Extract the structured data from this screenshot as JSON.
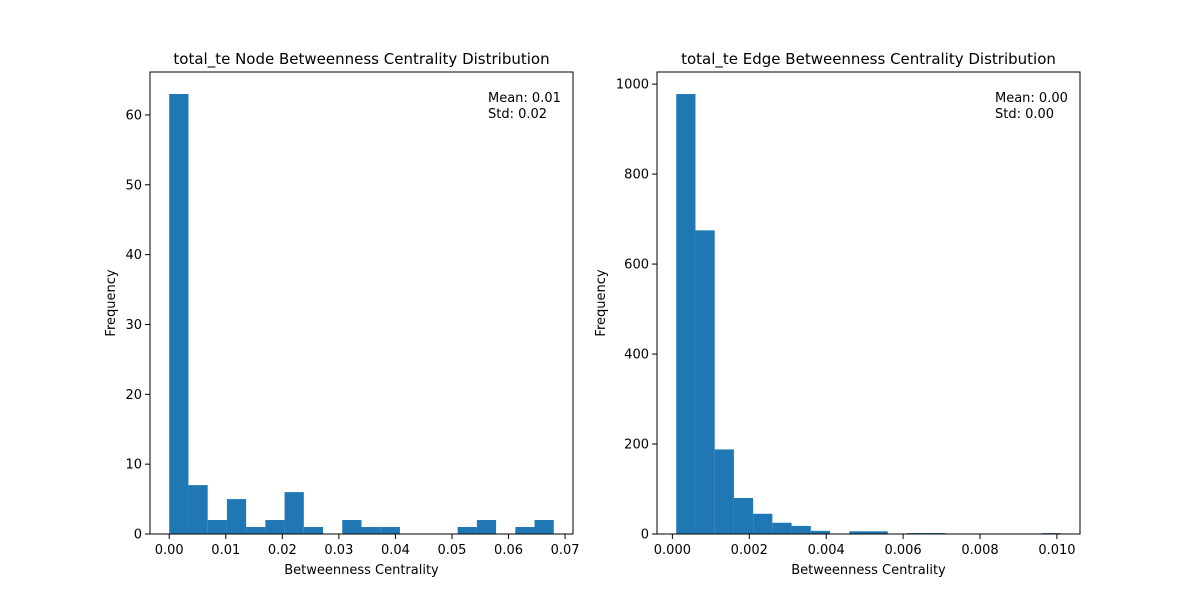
{
  "colors": {
    "bar": "#1f77b4",
    "axis": "#000000",
    "background": "#ffffff"
  },
  "chart_data": [
    {
      "type": "bar",
      "subtype": "histogram",
      "title": "total_te Node Betweenness Centrality Distribution",
      "xlabel": "Betweenness Centrality",
      "ylabel": "Frequency",
      "xlim": [
        -0.0034,
        0.0714
      ],
      "ylim": [
        0,
        66.15
      ],
      "xticks": [
        0.0,
        0.01,
        0.02,
        0.03,
        0.04,
        0.05,
        0.06,
        0.07
      ],
      "xtick_labels": [
        "0.00",
        "0.01",
        "0.02",
        "0.03",
        "0.04",
        "0.05",
        "0.06",
        "0.07"
      ],
      "yticks": [
        0,
        10,
        20,
        30,
        40,
        50,
        60
      ],
      "ytick_labels": [
        "0",
        "10",
        "20",
        "30",
        "40",
        "50",
        "60"
      ],
      "bin_edges": [
        0.0,
        0.0034,
        0.0068,
        0.0102,
        0.0136,
        0.017,
        0.0204,
        0.0238,
        0.0272,
        0.0306,
        0.034,
        0.0374,
        0.0408,
        0.0442,
        0.0476,
        0.051,
        0.0544,
        0.0578,
        0.0612,
        0.0646,
        0.068
      ],
      "values": [
        63,
        7,
        2,
        5,
        1,
        2,
        6,
        1,
        0,
        2,
        1,
        1,
        0,
        0,
        0,
        1,
        2,
        0,
        1,
        2
      ],
      "annotation": [
        "Mean: 0.01",
        "Std: 0.02"
      ],
      "grid": false
    },
    {
      "type": "bar",
      "subtype": "histogram",
      "title": "total_te Edge Betweenness Centrality Distribution",
      "xlabel": "Betweenness Centrality",
      "ylabel": "Frequency",
      "xlim": [
        -0.0004,
        0.0106
      ],
      "ylim": [
        0,
        1027
      ],
      "xticks": [
        0.0,
        0.002,
        0.004,
        0.006,
        0.008,
        0.01
      ],
      "xtick_labels": [
        "0.000",
        "0.002",
        "0.004",
        "0.006",
        "0.008",
        "0.010"
      ],
      "yticks": [
        0,
        200,
        400,
        600,
        800,
        1000
      ],
      "ytick_labels": [
        "0",
        "200",
        "400",
        "600",
        "800",
        "1000"
      ],
      "bin_edges": [
        0.0001,
        0.0006,
        0.0011,
        0.0016,
        0.0021,
        0.0026,
        0.0031,
        0.0036,
        0.0041,
        0.0046,
        0.0051,
        0.0056,
        0.0061,
        0.0066,
        0.0071,
        0.0076,
        0.0081,
        0.0086,
        0.0091,
        0.0096,
        0.0101
      ],
      "values": [
        978,
        675,
        188,
        80,
        45,
        25,
        18,
        7,
        0,
        6,
        6,
        0,
        2,
        2,
        0,
        0,
        0,
        0,
        0,
        2
      ],
      "annotation": [
        "Mean: 0.00",
        "Std: 0.00"
      ],
      "grid": false
    }
  ]
}
